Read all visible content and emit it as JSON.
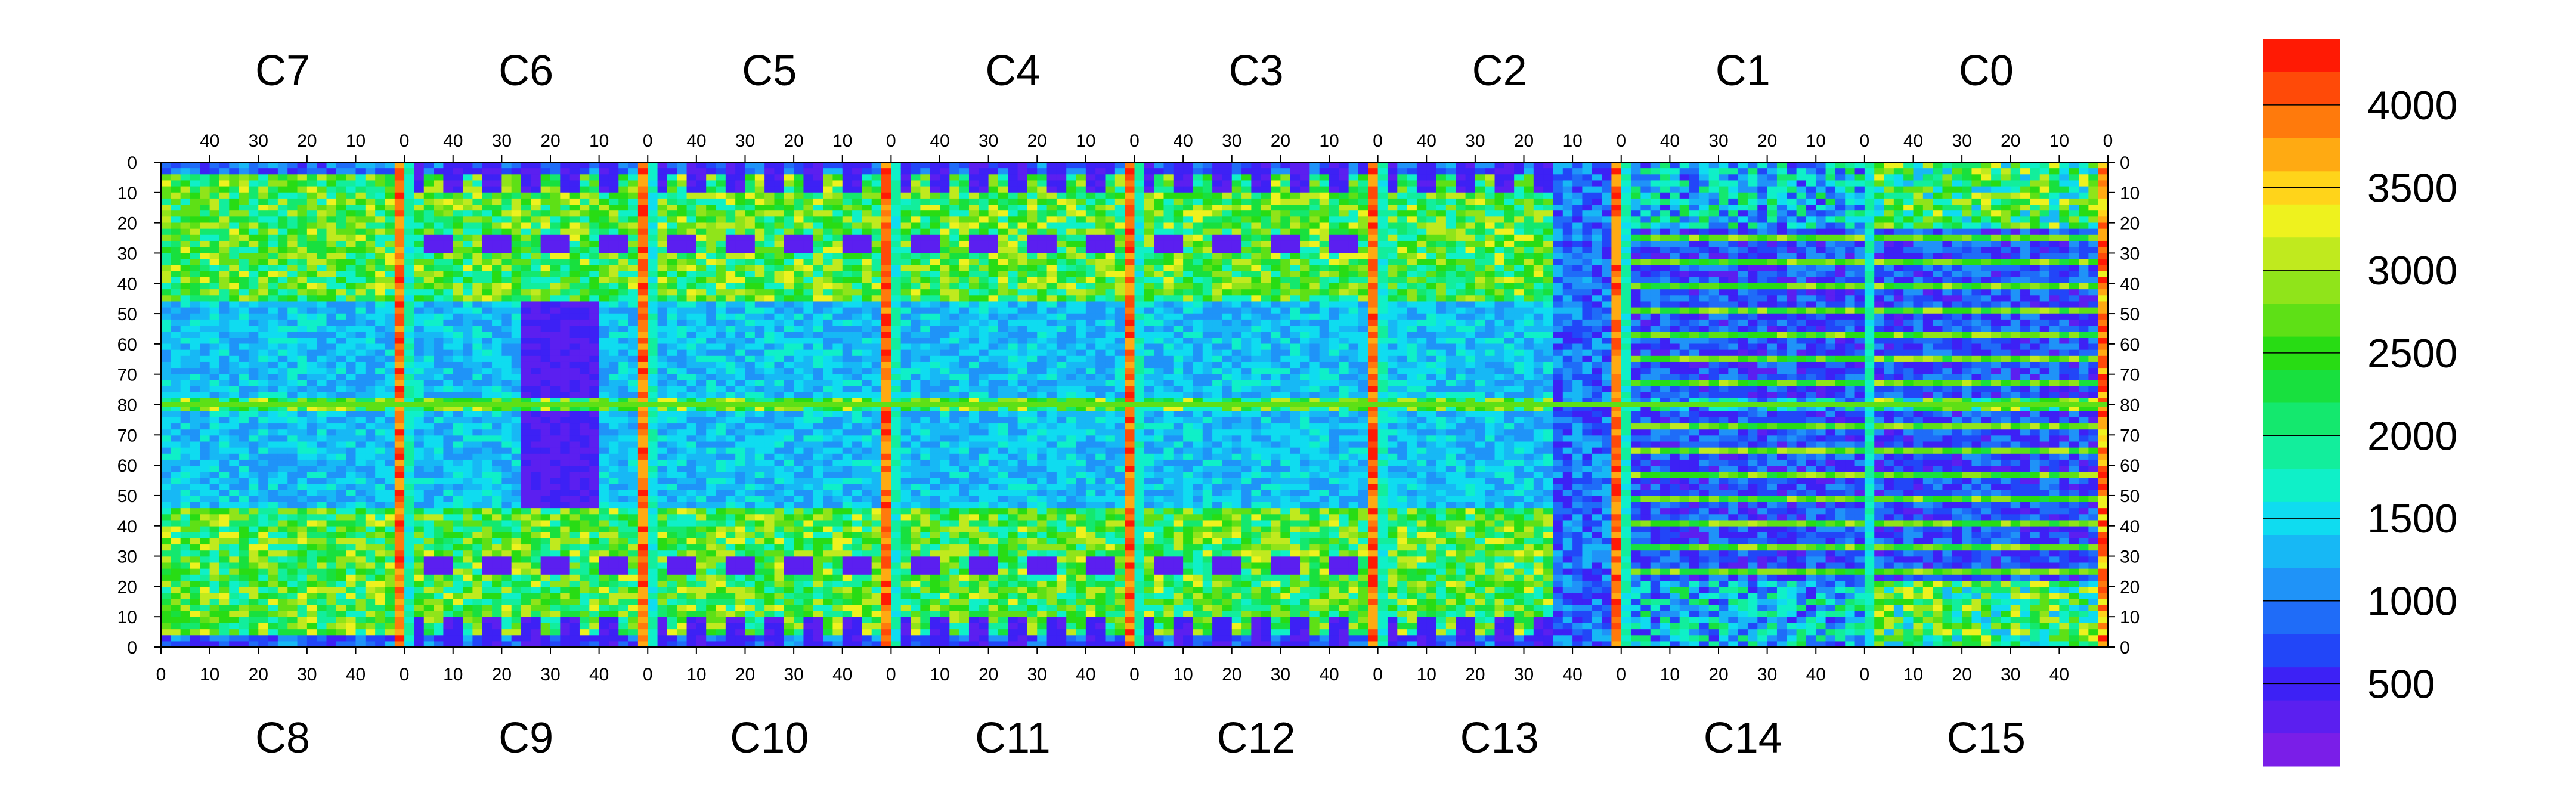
{
  "chart_data": {
    "type": "heatmap",
    "title": "",
    "top_chip_labels": [
      "C7",
      "C6",
      "C5",
      "C4",
      "C3",
      "C2",
      "C1",
      "C0"
    ],
    "bottom_chip_labels": [
      "C8",
      "C9",
      "C10",
      "C11",
      "C12",
      "C13",
      "C14",
      "C15"
    ],
    "top_x_ticks": [
      "40",
      "30",
      "20",
      "10",
      "0"
    ],
    "bottom_x_ticks": [
      "0",
      "10",
      "20",
      "30",
      "40"
    ],
    "y_ticks": [
      "0",
      "10",
      "20",
      "30",
      "40",
      "50",
      "60",
      "70",
      "80",
      "70",
      "60",
      "50",
      "40",
      "30",
      "20",
      "10",
      "0"
    ],
    "chip_columns": 50,
    "rows_per_half": 80,
    "colorbar": {
      "ticks": [
        "500",
        "1000",
        "1500",
        "2000",
        "2500",
        "3000",
        "3500",
        "4000"
      ],
      "tick_values": [
        500,
        1000,
        1500,
        2000,
        2500,
        3000,
        3500,
        4000
      ],
      "range": [
        0,
        4400
      ],
      "colors": [
        "#7a1ee8",
        "#5b1ff0",
        "#3d21f5",
        "#2246f8",
        "#1f6cf8",
        "#1f93f8",
        "#17b8f5",
        "#0fdcf0",
        "#0ff0c8",
        "#12ee9c",
        "#14e86e",
        "#18e03e",
        "#28dc14",
        "#5ee016",
        "#90e41a",
        "#c0ea1e",
        "#eef21e",
        "#ffd41a",
        "#ffaa12",
        "#ff7a0c",
        "#ff4a08",
        "#ff1a04"
      ]
    },
    "axis_ranges": {
      "x_per_chip": [
        0,
        50
      ],
      "y_per_half": [
        0,
        80
      ]
    },
    "grid": false,
    "legend": "colorbar-right"
  }
}
